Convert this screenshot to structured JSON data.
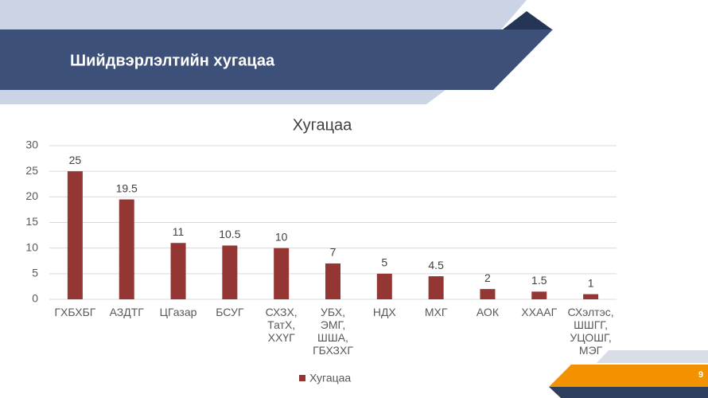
{
  "slide": {
    "title": "Шийдвэрлэлтийн хугацаа",
    "page_number": 9
  },
  "chart_data": {
    "type": "bar",
    "title": "Хугацаа",
    "categories": [
      "ГХБХБГ",
      "АЗДТГ",
      "ЦГазар",
      "БСУГ",
      "СХЗХ, ТатХ, ХХҮГ",
      "УБХ, ЭМГ, ШША, ГБХЗХГ",
      "НДХ",
      "МХГ",
      "АОК",
      "ХХААГ",
      "СХэлтэс, ШШГГ, УЦОШГ, МЭГ"
    ],
    "series": [
      {
        "name": "Хугацаа",
        "color": "#943634",
        "values": [
          25,
          19.5,
          11,
          10.5,
          10,
          7,
          5,
          4.5,
          2,
          1.5,
          1
        ]
      }
    ],
    "ylim": [
      0,
      30
    ],
    "yticks": [
      0,
      5,
      10,
      15,
      20,
      25,
      30
    ],
    "grid": true,
    "legend": "bottom"
  }
}
